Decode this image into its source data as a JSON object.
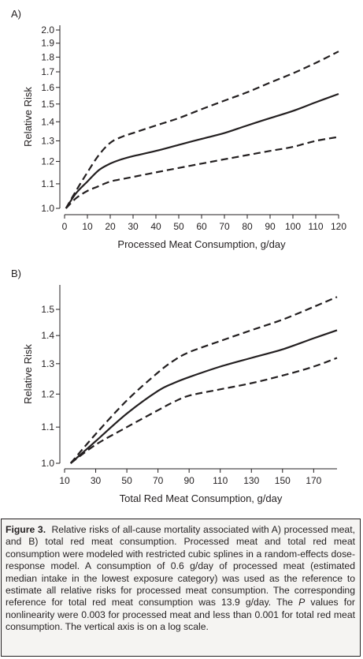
{
  "chart_data": [
    {
      "panel": "A)",
      "type": "line",
      "xlabel": "Processed Meat Consumption, g/day",
      "ylabel": "Relative Risk",
      "xlim": [
        0,
        120
      ],
      "ylim": [
        1.0,
        2.0
      ],
      "yscale": "log",
      "xticks": [
        0,
        10,
        20,
        30,
        40,
        50,
        60,
        70,
        80,
        90,
        100,
        110,
        120
      ],
      "xtick_labels": [
        "0",
        "10",
        "20",
        "30",
        "40",
        "50",
        "60",
        "70",
        "80",
        "90",
        "100",
        "110",
        "120"
      ],
      "yticks": [
        1.0,
        1.1,
        1.2,
        1.3,
        1.4,
        1.5,
        1.6,
        1.7,
        1.8,
        1.9,
        2.0
      ],
      "ytick_labels": [
        "1.0",
        "1.1",
        "1.2",
        "1.3",
        "1.4",
        "1.5",
        "1.6",
        "1.7",
        "1.8",
        "1.9",
        "2.0"
      ],
      "grid": false,
      "series": [
        {
          "style": "dashed",
          "x": [
            0.6,
            5,
            10,
            15,
            20,
            25,
            30,
            40,
            50,
            60,
            70,
            80,
            90,
            100,
            110,
            120
          ],
          "y": [
            1.0,
            1.07,
            1.15,
            1.23,
            1.29,
            1.32,
            1.34,
            1.38,
            1.42,
            1.47,
            1.52,
            1.57,
            1.63,
            1.69,
            1.76,
            1.84
          ]
        },
        {
          "style": "solid",
          "x": [
            0.6,
            5,
            10,
            15,
            20,
            25,
            30,
            40,
            50,
            60,
            70,
            80,
            90,
            100,
            110,
            120
          ],
          "y": [
            1.0,
            1.06,
            1.11,
            1.16,
            1.19,
            1.21,
            1.225,
            1.25,
            1.28,
            1.31,
            1.34,
            1.38,
            1.42,
            1.46,
            1.51,
            1.56
          ]
        },
        {
          "style": "dashed",
          "x": [
            0.6,
            5,
            10,
            15,
            20,
            25,
            30,
            40,
            50,
            60,
            70,
            80,
            90,
            100,
            110,
            120
          ],
          "y": [
            1.0,
            1.04,
            1.07,
            1.09,
            1.11,
            1.12,
            1.13,
            1.15,
            1.17,
            1.19,
            1.21,
            1.23,
            1.25,
            1.27,
            1.3,
            1.32
          ]
        }
      ]
    },
    {
      "panel": "B)",
      "type": "line",
      "xlabel": "Total Red Meat Consumption, g/day",
      "ylabel": "Relative Risk",
      "xlim": [
        10,
        185
      ],
      "ylim": [
        1.0,
        1.58
      ],
      "yscale": "log",
      "xticks": [
        10,
        30,
        50,
        70,
        90,
        110,
        130,
        150,
        170
      ],
      "xtick_labels": [
        "10",
        "30",
        "50",
        "70",
        "90",
        "110",
        "130",
        "150",
        "170"
      ],
      "yticks": [
        1.0,
        1.1,
        1.2,
        1.3,
        1.4,
        1.5
      ],
      "ytick_labels": [
        "1.0",
        "1.1",
        "1.2",
        "1.3",
        "1.4",
        "1.5"
      ],
      "grid": false,
      "series": [
        {
          "style": "dashed",
          "x": [
            13.9,
            30,
            50,
            70,
            80,
            90,
            110,
            130,
            150,
            170,
            185
          ],
          "y": [
            1.0,
            1.08,
            1.18,
            1.27,
            1.31,
            1.34,
            1.38,
            1.42,
            1.46,
            1.51,
            1.55
          ]
        },
        {
          "style": "solid",
          "x": [
            13.9,
            30,
            50,
            70,
            80,
            90,
            110,
            130,
            150,
            170,
            185
          ],
          "y": [
            1.0,
            1.06,
            1.14,
            1.21,
            1.235,
            1.255,
            1.29,
            1.32,
            1.35,
            1.39,
            1.42
          ]
        },
        {
          "style": "dashed",
          "x": [
            13.9,
            30,
            50,
            70,
            80,
            90,
            110,
            130,
            150,
            170,
            185
          ],
          "y": [
            1.0,
            1.05,
            1.1,
            1.15,
            1.175,
            1.195,
            1.215,
            1.235,
            1.26,
            1.29,
            1.32
          ]
        }
      ]
    }
  ],
  "caption": {
    "label": "Figure 3.",
    "part1": "Relative risks of all-cause mortality associated with A) processed meat, and B) total red meat consumption. Processed meat and total red meat consumption were modeled with restricted cubic splines in a random-effects dose-response model. A consumption of 0.6 g/day of processed meat (estimated median intake in the lowest exposure category) was used as the reference to estimate all relative risks for processed meat consumption. The corresponding reference for total red meat consumption was 13.9 g/day. The ",
    "italic": "P",
    "part2": " values for nonlinearity were 0.003 for processed meat and less than 0.001 for total red meat consumption. The vertical axis is on a log scale."
  }
}
